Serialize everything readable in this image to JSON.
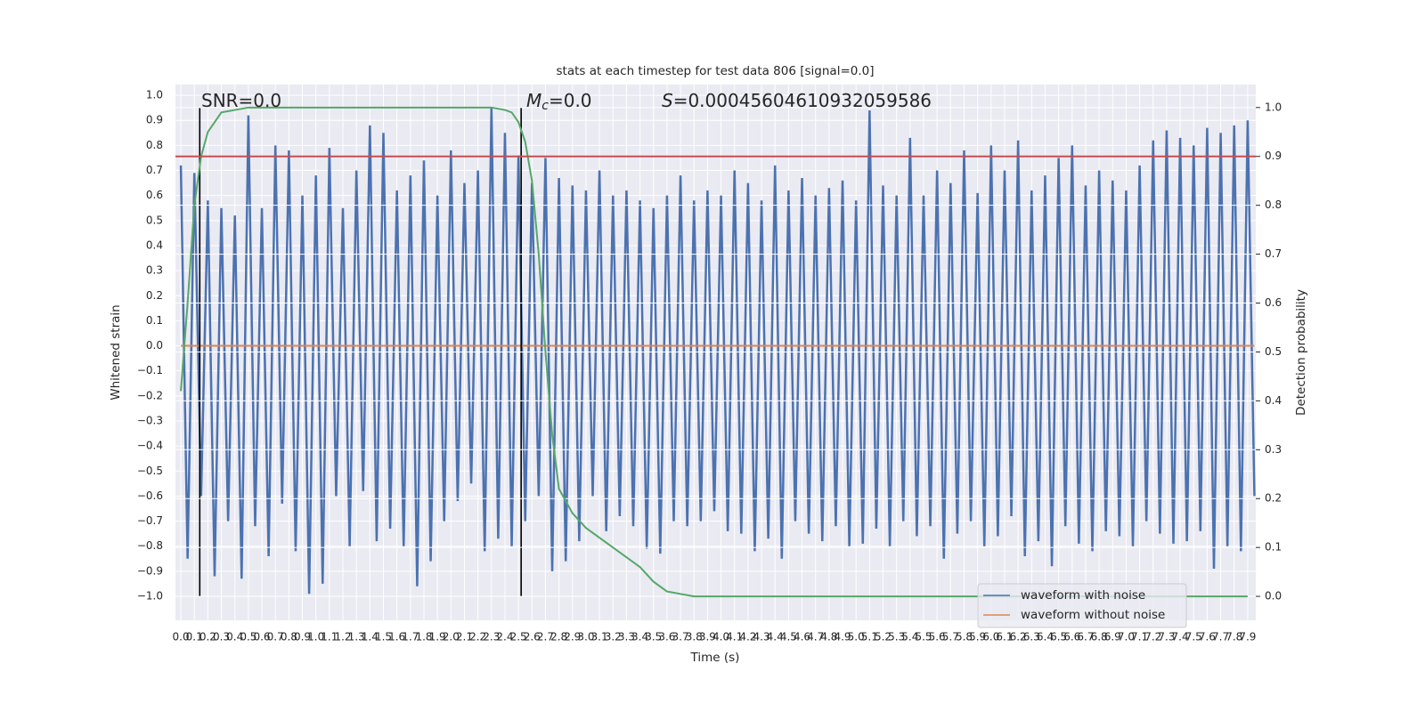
{
  "chart_data": {
    "type": "line",
    "title": "stats at each timestep for test data 806 [signal=0.0]",
    "xlabel": "Time (s)",
    "ylabel": "Whitened strain",
    "y2label": "Detection probability",
    "grid": true,
    "legend": "lower right",
    "xlim": [
      -0.04,
      7.96
    ],
    "ylim": [
      -1.096,
      1.043
    ],
    "y2lim": [
      -0.049,
      1.047
    ],
    "xticks": [
      {
        "value": 0,
        "label": "0.0"
      },
      0.1,
      0.2,
      0.3,
      0.4,
      0.5,
      0.6,
      0.7,
      0.8,
      0.9,
      {
        "value": 1,
        "label": "1.0"
      },
      1.1,
      1.2,
      1.3,
      1.4,
      1.5,
      1.6,
      1.7,
      1.8,
      1.9,
      {
        "value": 2,
        "label": "2.0"
      },
      2.1,
      2.2,
      2.3,
      2.4,
      2.5,
      2.6,
      2.7,
      2.8,
      2.9,
      {
        "value": 3,
        "label": "3.0"
      },
      3.1,
      3.2,
      3.3,
      3.4,
      3.5,
      3.6,
      3.7,
      3.8,
      3.9,
      {
        "value": 4,
        "label": "4.0"
      },
      4.1,
      4.2,
      4.3,
      4.4,
      4.5,
      4.6,
      4.7,
      4.8,
      4.9,
      {
        "value": 5,
        "label": "5.0"
      },
      5.1,
      5.2,
      5.3,
      5.4,
      5.5,
      5.6,
      5.7,
      5.8,
      5.9,
      {
        "value": 6,
        "label": "6.0"
      },
      6.1,
      6.2,
      6.3,
      6.4,
      6.5,
      6.6,
      6.7,
      6.8,
      6.9,
      {
        "value": 7,
        "label": "7.0"
      },
      7.1,
      7.2,
      7.3,
      7.4,
      7.5,
      7.6,
      7.7,
      7.8,
      7.9
    ],
    "yticks": [
      {
        "value": -1,
        "label": "−1.0"
      },
      {
        "value": -0.9,
        "label": "−0.9"
      },
      {
        "value": -0.8,
        "label": "−0.8"
      },
      {
        "value": -0.7,
        "label": "−0.7"
      },
      {
        "value": -0.6,
        "label": "−0.6"
      },
      {
        "value": -0.5,
        "label": "−0.5"
      },
      {
        "value": -0.4,
        "label": "−0.4"
      },
      {
        "value": -0.3,
        "label": "−0.3"
      },
      {
        "value": -0.2,
        "label": "−0.2"
      },
      {
        "value": -0.1,
        "label": "−0.1"
      },
      {
        "value": 0,
        "label": "0.0"
      },
      0.1,
      0.2,
      0.3,
      0.4,
      0.5,
      0.6,
      0.7,
      0.8,
      0.9,
      {
        "value": 1,
        "label": "1.0"
      }
    ],
    "y2ticks": [
      {
        "value": 0,
        "label": "0.0"
      },
      0.1,
      0.2,
      0.3,
      0.4,
      0.5,
      0.6,
      0.7,
      0.8,
      0.9,
      {
        "value": 1,
        "label": "1.0"
      }
    ],
    "series": [
      {
        "name": "waveform with noise",
        "color": "#4c72b0",
        "x": [
          0,
          0.05,
          0.1,
          0.15,
          0.2,
          0.25,
          0.3,
          0.35,
          0.4,
          0.45,
          0.5,
          0.55,
          0.6,
          0.65,
          0.7,
          0.75,
          0.8,
          0.85,
          0.9,
          0.95,
          1,
          1.05,
          1.1,
          1.15,
          1.2,
          1.25,
          1.3,
          1.35,
          1.4,
          1.45,
          1.5,
          1.55,
          1.6,
          1.65,
          1.7,
          1.75,
          1.8,
          1.85,
          1.9,
          1.95,
          2,
          2.05,
          2.1,
          2.15,
          2.2,
          2.25,
          2.3,
          2.35,
          2.4,
          2.45,
          2.5,
          2.55,
          2.6,
          2.65,
          2.7,
          2.75,
          2.8,
          2.85,
          2.9,
          2.95,
          3,
          3.05,
          3.1,
          3.15,
          3.2,
          3.25,
          3.3,
          3.35,
          3.4,
          3.45,
          3.5,
          3.55,
          3.6,
          3.65,
          3.7,
          3.75,
          3.8,
          3.85,
          3.9,
          3.95,
          4,
          4.05,
          4.1,
          4.15,
          4.2,
          4.25,
          4.3,
          4.35,
          4.4,
          4.45,
          4.5,
          4.55,
          4.6,
          4.65,
          4.7,
          4.75,
          4.8,
          4.85,
          4.9,
          4.95,
          5,
          5.05,
          5.1,
          5.15,
          5.2,
          5.25,
          5.3,
          5.35,
          5.4,
          5.45,
          5.5,
          5.55,
          5.6,
          5.65,
          5.7,
          5.75,
          5.8,
          5.85,
          5.9,
          5.95,
          6,
          6.05,
          6.1,
          6.15,
          6.2,
          6.25,
          6.3,
          6.35,
          6.4,
          6.45,
          6.5,
          6.55,
          6.6,
          6.65,
          6.7,
          6.75,
          6.8,
          6.85,
          6.9,
          6.95,
          7,
          7.05,
          7.1,
          7.15,
          7.2,
          7.25,
          7.3,
          7.35,
          7.4,
          7.45,
          7.5,
          7.55,
          7.6,
          7.65,
          7.7,
          7.75,
          7.8,
          7.85,
          7.9,
          7.95
        ],
        "values": [
          0.72,
          -0.85,
          0.69,
          -0.6,
          0.58,
          -0.92,
          0.55,
          -0.7,
          0.52,
          -0.93,
          0.92,
          -0.72,
          0.55,
          -0.84,
          0.8,
          -0.63,
          0.78,
          -0.82,
          0.6,
          -0.99,
          0.68,
          -0.95,
          0.79,
          -0.6,
          0.55,
          -0.8,
          0.7,
          -0.58,
          0.88,
          -0.78,
          0.85,
          -0.73,
          0.62,
          -0.8,
          0.68,
          -0.96,
          0.74,
          -0.86,
          0.6,
          -0.7,
          0.78,
          -0.62,
          0.65,
          -0.55,
          0.7,
          -0.82,
          0.95,
          -0.77,
          0.85,
          -0.8,
          0.76,
          -0.7,
          0.65,
          -0.6,
          0.75,
          -0.9,
          0.67,
          -0.86,
          0.64,
          -0.78,
          0.62,
          -0.6,
          0.7,
          -0.74,
          0.6,
          -0.68,
          0.62,
          -0.72,
          0.58,
          -0.81,
          0.55,
          -0.83,
          0.6,
          -0.7,
          0.68,
          -0.72,
          0.58,
          -0.7,
          0.62,
          -0.66,
          0.6,
          -0.74,
          0.7,
          -0.75,
          0.65,
          -0.82,
          0.58,
          -0.77,
          0.72,
          -0.85,
          0.62,
          -0.7,
          0.67,
          -0.75,
          0.6,
          -0.78,
          0.63,
          -0.72,
          0.66,
          -0.8,
          0.58,
          -0.79,
          0.94,
          -0.73,
          0.64,
          -0.8,
          0.6,
          -0.7,
          0.83,
          -0.76,
          0.6,
          -0.72,
          0.7,
          -0.85,
          0.65,
          -0.75,
          0.78,
          -0.7,
          0.61,
          -0.8,
          0.8,
          -0.76,
          0.7,
          -0.68,
          0.82,
          -0.84,
          0.62,
          -0.78,
          0.68,
          -0.88,
          0.75,
          -0.72,
          0.8,
          -0.79,
          0.64,
          -0.82,
          0.7,
          -0.74,
          0.66,
          -0.76,
          0.62,
          -0.8,
          0.72,
          -0.7,
          0.82,
          -0.75,
          0.86,
          -0.79,
          0.83,
          -0.78,
          0.8,
          -0.74,
          0.87,
          -0.89,
          0.85,
          -0.8,
          0.88,
          -0.82,
          0.9,
          -0.6
        ]
      },
      {
        "name": "waveform without noise",
        "color": "#dd8452",
        "x": [
          0,
          7.95
        ],
        "values": [
          0,
          0
        ]
      }
    ],
    "probability": {
      "color": "#55a868",
      "x": [
        0,
        0.05,
        0.1,
        0.15,
        0.2,
        0.25,
        0.3,
        0.4,
        0.5,
        2.3,
        2.4,
        2.45,
        2.5,
        2.55,
        2.6,
        2.65,
        2.7,
        2.75,
        2.8,
        2.9,
        3,
        3.2,
        3.4,
        3.5,
        3.6,
        3.8,
        7.9
      ],
      "values": [
        0.42,
        0.6,
        0.8,
        0.9,
        0.95,
        0.97,
        0.99,
        0.995,
        1,
        1,
        0.995,
        0.99,
        0.97,
        0.93,
        0.85,
        0.7,
        0.5,
        0.33,
        0.22,
        0.17,
        0.14,
        0.1,
        0.06,
        0.03,
        0.01,
        0,
        0
      ]
    },
    "threshold": {
      "value": 0.9,
      "color": "#c44e52"
    },
    "vlines": [
      0.14,
      2.52
    ],
    "annotations": [
      {
        "text": "SNR=0.0"
      },
      {
        "symbol": "M",
        "subscript": "c",
        "text": "=0.0"
      },
      {
        "symbol": "S",
        "text": "=0.00045604610932059586"
      }
    ]
  }
}
